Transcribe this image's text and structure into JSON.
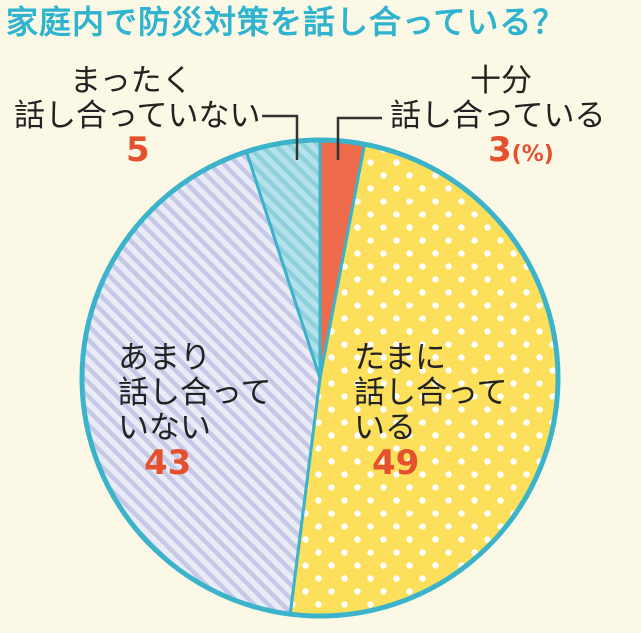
{
  "header": {
    "title": "家庭内で防災対策を話し合っている？"
  },
  "chart_data": {
    "type": "pie",
    "unit": "(%)",
    "slices": [
      {
        "label_lines": [
          "十分",
          "話し合っている"
        ],
        "value": 3,
        "color": "#ee6b4c",
        "pattern": "solid"
      },
      {
        "label_lines": [
          "たまに",
          "話し合って",
          "いる"
        ],
        "value": 49,
        "color": "#fcdf5a",
        "pattern": "dots"
      },
      {
        "label_lines": [
          "あまり",
          "話し合って",
          "いない"
        ],
        "value": 43,
        "color": "#dde0f0",
        "pattern": "stripes"
      },
      {
        "label_lines": [
          "まったく",
          "話し合っていない"
        ],
        "value": 5,
        "color": "#a6dde6",
        "pattern": "stripes-light"
      }
    ],
    "border_color": "#3ab3cb"
  }
}
